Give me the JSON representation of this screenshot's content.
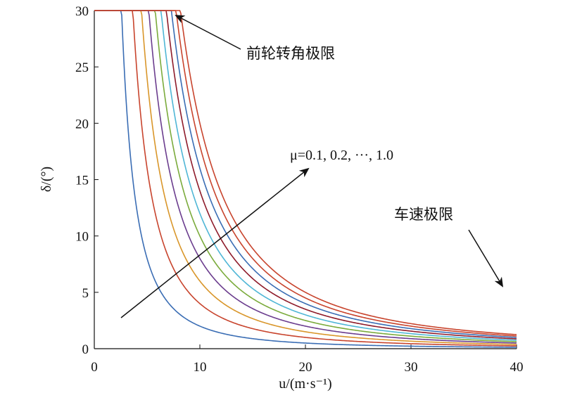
{
  "chart_data": {
    "type": "line",
    "title": "",
    "xlabel": "u/(m·s⁻¹)",
    "ylabel": "δ/(°)",
    "xlim": [
      0,
      40
    ],
    "ylim": [
      0,
      30
    ],
    "xticks": [
      "0",
      "10",
      "20",
      "30",
      "40"
    ],
    "yticks": [
      "0",
      "5",
      "10",
      "15",
      "20",
      "25",
      "30"
    ],
    "grid": false,
    "front_wheel_limit_deg": 30,
    "series_model": "min(30, k·μ/u²)",
    "series": [
      {
        "mu": 0.1,
        "color": "#3a6db4",
        "x": [
          2.5,
          5,
          10,
          20,
          30,
          40
        ],
        "y": [
          30,
          8.0,
          2.0,
          0.5,
          0.22,
          0.125
        ]
      },
      {
        "mu": 0.2,
        "color": "#c8442d",
        "x": [
          3.5,
          5,
          10,
          20,
          30,
          40
        ],
        "y": [
          30,
          16.0,
          4.0,
          1.0,
          0.44,
          0.25
        ]
      },
      {
        "mu": 0.3,
        "color": "#d9962a",
        "x": [
          4.3,
          5,
          10,
          20,
          30,
          40
        ],
        "y": [
          30,
          24.0,
          6.0,
          1.5,
          0.67,
          0.375
        ]
      },
      {
        "mu": 0.4,
        "color": "#6b3d8e",
        "x": [
          5.0,
          10,
          20,
          30,
          40
        ],
        "y": [
          30,
          8.0,
          2.0,
          0.89,
          0.5
        ]
      },
      {
        "mu": 0.5,
        "color": "#7bab3c",
        "x": [
          5.6,
          10,
          20,
          30,
          40
        ],
        "y": [
          30,
          10.0,
          2.5,
          1.11,
          0.625
        ]
      },
      {
        "mu": 0.6,
        "color": "#4fb6d6",
        "x": [
          6.1,
          10,
          20,
          30,
          40
        ],
        "y": [
          30,
          12.0,
          3.0,
          1.33,
          0.75
        ]
      },
      {
        "mu": 0.7,
        "color": "#8e1b2a",
        "x": [
          6.6,
          10,
          20,
          30,
          40
        ],
        "y": [
          30,
          14.0,
          3.5,
          1.56,
          0.875
        ]
      },
      {
        "mu": 0.8,
        "color": "#3a6db4",
        "x": [
          7.1,
          10,
          20,
          30,
          40
        ],
        "y": [
          30,
          16.0,
          4.0,
          1.78,
          1.0
        ]
      },
      {
        "mu": 0.9,
        "color": "#c8442d",
        "x": [
          7.5,
          10,
          20,
          30,
          40
        ],
        "y": [
          30,
          18.0,
          4.5,
          2.0,
          1.125
        ]
      },
      {
        "mu": 1.0,
        "color": "#c8442d",
        "x": [
          8.0,
          10,
          20,
          30,
          40
        ],
        "y": [
          30,
          20.0,
          5.0,
          2.22,
          1.25
        ]
      }
    ],
    "annotations": [
      {
        "id": "front-wheel",
        "text": "前轮转角极限"
      },
      {
        "id": "mu-range",
        "text": "μ=0.1, 0.2, ···, 1.0"
      },
      {
        "id": "speed-limit",
        "text": "车速极限"
      }
    ]
  }
}
